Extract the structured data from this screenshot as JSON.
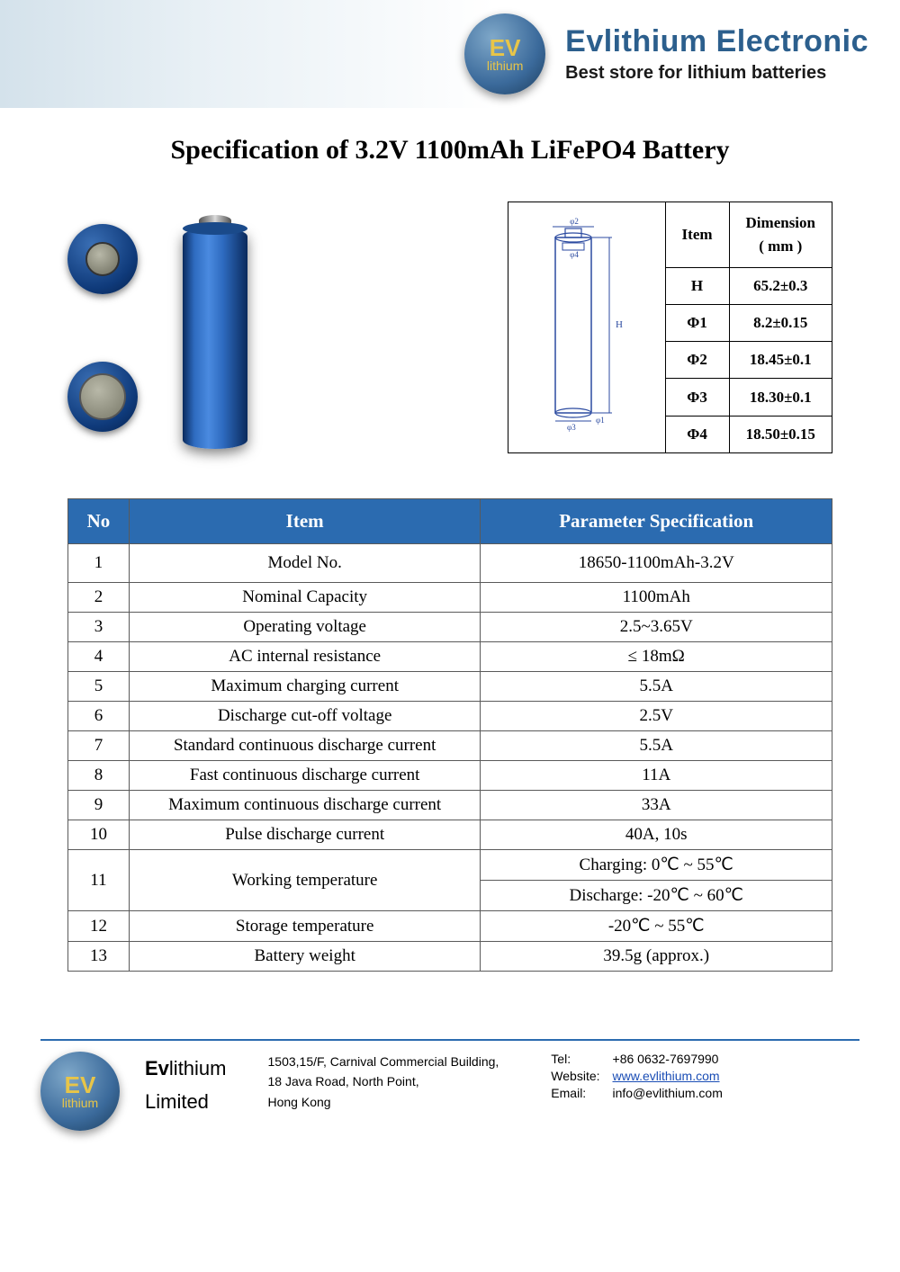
{
  "header": {
    "title": "Evlithium Electronic",
    "subtitle": "Best store for lithium batteries",
    "logo_ev": "EV",
    "logo_sub": "lithium"
  },
  "page_title": "Specification of 3.2V 1100mAh LiFePO4 Battery",
  "colors": {
    "brand_blue": "#2c5f8d",
    "table_header_bg": "#2b6bb0",
    "table_header_fg": "#ffffff",
    "border": "#5a5a5a",
    "hr": "#2b6bb0"
  },
  "dimension_table": {
    "head_item": "Item",
    "head_dim": "Dimension",
    "head_unit": "( mm )",
    "rows": [
      {
        "label": "H",
        "value": "65.2±0.3"
      },
      {
        "label": "Φ1",
        "value": "8.2±0.15"
      },
      {
        "label": "Φ2",
        "value": "18.45±0.1"
      },
      {
        "label": "Φ3",
        "value": "18.30±0.1"
      },
      {
        "label": "Φ4",
        "value": "18.50±0.15"
      }
    ],
    "diagram_labels": {
      "h": "H",
      "phi1": "φ1",
      "phi2": "φ2",
      "phi3": "φ3",
      "phi4": "φ4"
    }
  },
  "spec_table": {
    "headers": {
      "no": "No",
      "item": "Item",
      "param": "Parameter Specification"
    },
    "rows": [
      {
        "no": "1",
        "item": "Model No.",
        "param": "18650-1100mAh-3.2V",
        "first": true
      },
      {
        "no": "2",
        "item": "Nominal Capacity",
        "param": "1100mAh"
      },
      {
        "no": "3",
        "item": "Operating voltage",
        "param": "2.5~3.65V"
      },
      {
        "no": "4",
        "item": "AC internal resistance",
        "param": "≤ 18mΩ"
      },
      {
        "no": "5",
        "item": "Maximum charging current",
        "param": "5.5A"
      },
      {
        "no": "6",
        "item": "Discharge cut-off voltage",
        "param": "2.5V"
      },
      {
        "no": "7",
        "item": "Standard continuous discharge current",
        "param": "5.5A"
      },
      {
        "no": "8",
        "item": "Fast continuous discharge current",
        "param": "11A"
      },
      {
        "no": "9",
        "item": "Maximum continuous discharge current",
        "param": "33A"
      },
      {
        "no": "10",
        "item": "Pulse discharge current",
        "param": "40A, 10s"
      },
      {
        "no": "11",
        "item": "Working temperature",
        "param_split": [
          "Charging: 0℃ ~ 55℃",
          "Discharge: -20℃ ~ 60℃"
        ]
      },
      {
        "no": "12",
        "item": "Storage temperature",
        "param": "-20℃ ~ 55℃"
      },
      {
        "no": "13",
        "item": "Battery weight",
        "param": "39.5g (approx.)"
      }
    ]
  },
  "footer": {
    "company_prefix": "Ev",
    "company_rest": "lithium",
    "company_line2": "Limited",
    "address_l1": "1503,15/F, Carnival Commercial Building,",
    "address_l2": "18 Java Road, North Point,",
    "address_l3": "Hong Kong",
    "tel_label": "Tel:",
    "tel_value": "+86 0632-7697990",
    "web_label": "Website:",
    "web_value": "www.evlithium.com",
    "email_label": "Email:",
    "email_value": "info@evlithium.com"
  }
}
